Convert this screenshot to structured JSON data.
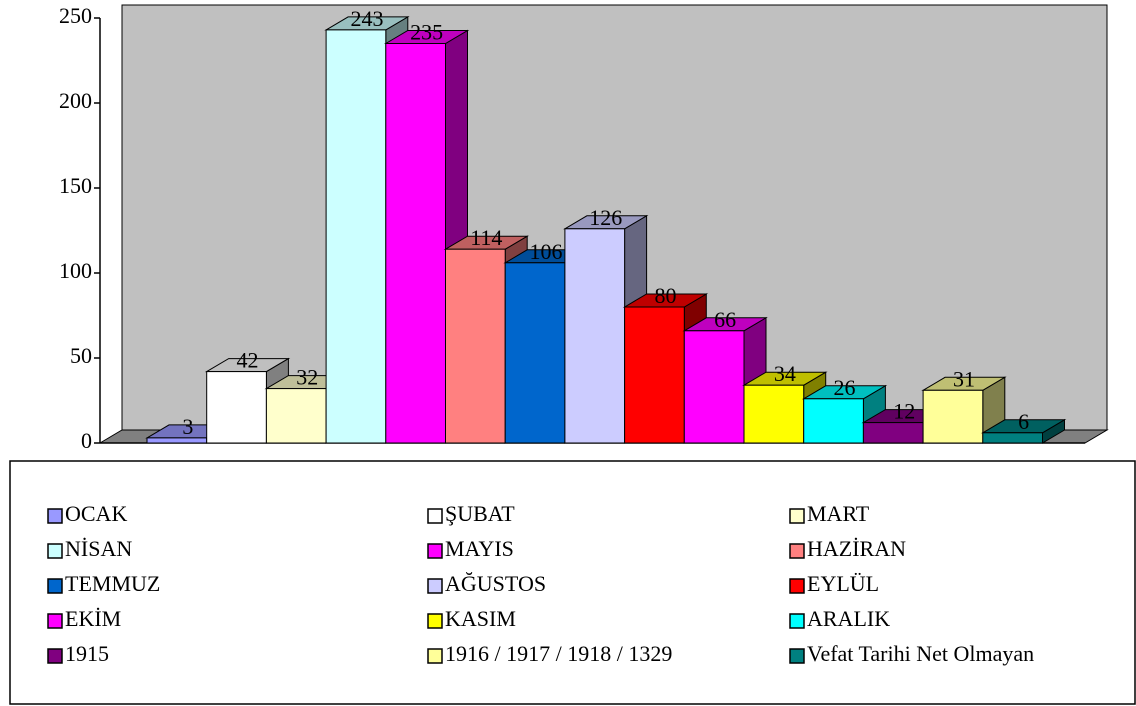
{
  "chart_data": {
    "type": "bar3d",
    "series": [
      {
        "name": "OCAK",
        "color": "#9999ff",
        "values": [
          3
        ]
      },
      {
        "name": "ŞUBAT",
        "color": "#ffffff",
        "values": [
          42
        ]
      },
      {
        "name": "MART",
        "color": "#ffffcc",
        "values": [
          32
        ]
      },
      {
        "name": "NİSAN",
        "color": "#ccffff",
        "values": [
          243
        ]
      },
      {
        "name": "MAYIS",
        "color": "#ff00ff",
        "values": [
          235
        ]
      },
      {
        "name": "HAZİRAN",
        "color": "#ff8080",
        "values": [
          114
        ]
      },
      {
        "name": "TEMMUZ",
        "color": "#0066cc",
        "values": [
          106
        ]
      },
      {
        "name": "AĞUSTOS",
        "color": "#ccccff",
        "values": [
          126
        ]
      },
      {
        "name": "EYLÜL",
        "color": "#ff0000",
        "values": [
          80
        ]
      },
      {
        "name": "EKİM",
        "color": "#ff00ff",
        "values": [
          66
        ]
      },
      {
        "name": "KASIM",
        "color": "#ffff00",
        "values": [
          34
        ]
      },
      {
        "name": "ARALIK",
        "color": "#00ffff",
        "values": [
          26
        ]
      },
      {
        "name": "1915",
        "color": "#800080",
        "values": [
          12
        ]
      },
      {
        "name": "1916 / 1917 / 1918 / 1329",
        "color": "#ffff99",
        "values": [
          31
        ]
      },
      {
        "name": "Vefat Tarihi Net Olmayan",
        "color": "#008080",
        "values": [
          6
        ]
      }
    ],
    "ylim": [
      0,
      250
    ],
    "yticks": [
      0,
      50,
      100,
      150,
      200,
      250
    ],
    "legend": "bottom"
  }
}
